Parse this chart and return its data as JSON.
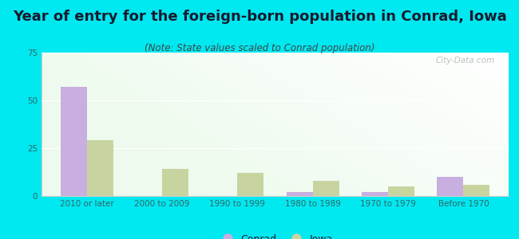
{
  "title": "Year of entry for the foreign-born population in Conrad, Iowa",
  "subtitle": "(Note: State values scaled to Conrad population)",
  "categories": [
    "2010 or later",
    "2000 to 2009",
    "1990 to 1999",
    "1980 to 1989",
    "1970 to 1979",
    "Before 1970"
  ],
  "conrad_values": [
    57,
    0,
    0,
    2,
    2,
    10
  ],
  "iowa_values": [
    29,
    14,
    12,
    8,
    5,
    6
  ],
  "conrad_color": "#c9aee0",
  "iowa_color": "#c8d4a0",
  "background_color": "#00e8f0",
  "ylim": [
    0,
    75
  ],
  "yticks": [
    0,
    25,
    50,
    75
  ],
  "bar_width": 0.35,
  "title_fontsize": 13,
  "subtitle_fontsize": 8.5,
  "tick_fontsize": 7.5,
  "legend_fontsize": 9,
  "watermark_text": "City-Data.com",
  "watermark_color": "#b0b8b0",
  "title_color": "#1a1a2e",
  "subtitle_color": "#444444",
  "tick_color": "#336666",
  "grid_color": "#e8e8e8"
}
